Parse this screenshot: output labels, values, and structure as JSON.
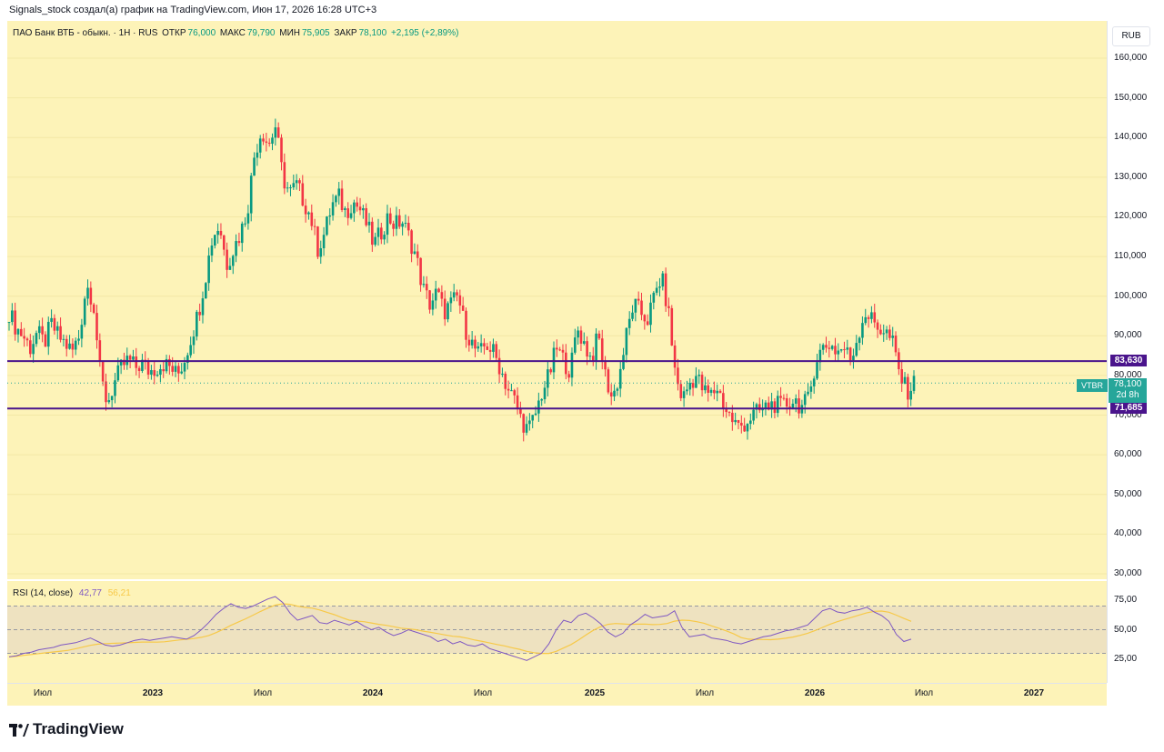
{
  "caption": "Signals_stock создал(а) график на TradingView.com, Июн 17, 2026 16:28 UTC+3",
  "legend": {
    "title": "ПАО Банк ВТБ - обыкн. · 1Н · RUS",
    "open_label": "ОТКР",
    "open": "76,000",
    "high_label": "МАКС",
    "high": "79,790",
    "low_label": "МИН",
    "low": "75,905",
    "close_label": "ЗАКР",
    "close": "78,100",
    "change": "+2,195 (+2,89%)"
  },
  "currency": "RUB",
  "ticker_tag": "VTBR",
  "last_price": {
    "value": "78,100",
    "countdown": "2d 8h"
  },
  "levels": [
    {
      "label": "83,630",
      "value": 83630
    },
    {
      "label": "71,685",
      "value": 71685
    }
  ],
  "price_ticks": [
    "160,000",
    "150,000",
    "140,000",
    "130,000",
    "120,000",
    "110,000",
    "100,000",
    "90,000",
    "80,000",
    "70,000",
    "60,000",
    "50,000",
    "40,000",
    "30,000"
  ],
  "rsi": {
    "label": "RSI (14, close)",
    "rsi_value": "42,77",
    "ma_value": "56,21",
    "ticks": [
      "75,00",
      "50,00",
      "25,00"
    ]
  },
  "time_ticks": [
    "Июл",
    "2023",
    "Июл",
    "2024",
    "Июл",
    "2025",
    "Июл",
    "2026",
    "Июл",
    "2027"
  ],
  "branding": "TradingView",
  "colors": {
    "background": "#fdf3b8",
    "up": "#089981",
    "down": "#f23645",
    "level_line": "#4a148c",
    "rsi_line": "#7e57c2",
    "rsi_ma": "#f7c948",
    "last_price": "#26a69a"
  },
  "chart_data": {
    "type": "candlestick",
    "symbol": "VTBR",
    "y_range": [
      30000,
      160000
    ],
    "close_path": [
      96000,
      92000,
      90000,
      87000,
      91000,
      88000,
      93000,
      90000,
      88000,
      86000,
      90000,
      103000,
      99000,
      80000,
      73000,
      78000,
      82000,
      84000,
      82000,
      83000,
      81000,
      82000,
      83000,
      82000,
      80000,
      84000,
      90000,
      96000,
      105000,
      115000,
      118000,
      108000,
      112000,
      116000,
      122000,
      136000,
      142000,
      138000,
      143000,
      130000,
      126000,
      128000,
      124000,
      120000,
      112000,
      116000,
      123000,
      125000,
      121000,
      124000,
      122000,
      118000,
      113000,
      116000,
      120000,
      118000,
      119000,
      115000,
      110000,
      102000,
      98000,
      101000,
      96000,
      98000,
      100000,
      92000,
      88000,
      85000,
      88000,
      86000,
      82000,
      77000,
      74000,
      69000,
      66000,
      70000,
      76000,
      80000,
      87000,
      84000,
      81000,
      92000,
      88000,
      84000,
      90000,
      80000,
      74000,
      80000,
      90000,
      98000,
      96000,
      94000,
      100000,
      105000,
      96000,
      80000,
      74000,
      78000,
      80000,
      76000,
      75000,
      77000,
      72000,
      69000,
      67000,
      68000,
      70000,
      71000,
      72000,
      73000,
      72000,
      73000,
      74000,
      72000,
      74000,
      84000,
      87000,
      88000,
      86000,
      87000,
      84000,
      90000,
      96000,
      94000,
      92000,
      91000,
      88000,
      80000,
      76000,
      78000
    ],
    "rsi_path": [
      27,
      28,
      30,
      31,
      33,
      34,
      35,
      37,
      38,
      39,
      41,
      43,
      40,
      37,
      36,
      37,
      39,
      41,
      42,
      41,
      42,
      43,
      44,
      43,
      42,
      45,
      50,
      56,
      63,
      68,
      72,
      69,
      68,
      70,
      73,
      76,
      78,
      73,
      64,
      58,
      60,
      62,
      56,
      55,
      58,
      56,
      54,
      57,
      53,
      50,
      52,
      48,
      45,
      47,
      50,
      48,
      46,
      44,
      40,
      42,
      38,
      40,
      37,
      36,
      38,
      34,
      32,
      30,
      28,
      26,
      24,
      27,
      30,
      38,
      50,
      58,
      56,
      62,
      64,
      60,
      55,
      48,
      44,
      47,
      54,
      58,
      63,
      60,
      61,
      62,
      66,
      52,
      44,
      45,
      46,
      43,
      42,
      41,
      39,
      38,
      40,
      42,
      44,
      45,
      47,
      49,
      50,
      52,
      54,
      60,
      66,
      68,
      65,
      64,
      66,
      67,
      69,
      65,
      62,
      57,
      46,
      40,
      42
    ],
    "rsi_levels": [
      70,
      50,
      30
    ],
    "time_labels": [
      "Июл",
      "2023",
      "Июл",
      "2024",
      "Июл",
      "2025",
      "Июл",
      "2026",
      "Июл",
      "2027"
    ]
  }
}
